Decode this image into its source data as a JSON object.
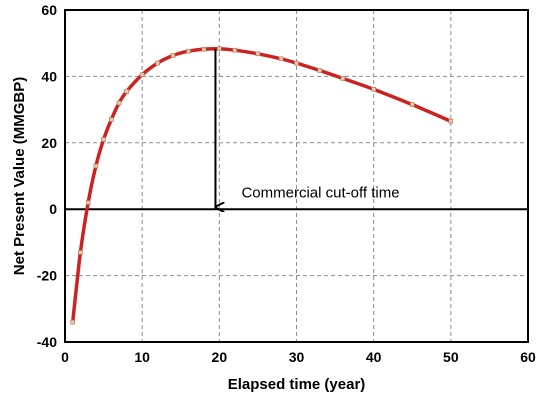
{
  "chart_data": {
    "type": "line",
    "title": "",
    "xlabel": "Elapsed time (year)",
    "ylabel": "Net Present Value (MMGBP)",
    "xlim": [
      0,
      60
    ],
    "ylim": [
      -40,
      60
    ],
    "x_ticks": [
      0,
      10,
      20,
      30,
      40,
      50,
      60
    ],
    "y_ticks": [
      -40,
      -20,
      0,
      20,
      40,
      60
    ],
    "grid": true,
    "legend": "none",
    "series": [
      {
        "color": "#cc2222",
        "marker_color": "#e8c8a8",
        "x": [
          1,
          2,
          3,
          4,
          5,
          6,
          7,
          8,
          10,
          12,
          14,
          16,
          18,
          20,
          22,
          25,
          28,
          30,
          33,
          36,
          40,
          45,
          50
        ],
        "y": [
          -34,
          -13,
          2,
          13,
          21,
          27,
          32,
          35.5,
          40.5,
          44,
          46.3,
          47.6,
          48.2,
          48.3,
          47.9,
          46.8,
          45.3,
          44,
          41.8,
          39.4,
          36.1,
          31.5,
          26.5
        ]
      }
    ],
    "annotations": [
      {
        "text": "Commercial cut-off time",
        "arrow_from": [
          19.5,
          48.3
        ],
        "arrow_to": [
          19.5,
          0
        ]
      }
    ]
  }
}
